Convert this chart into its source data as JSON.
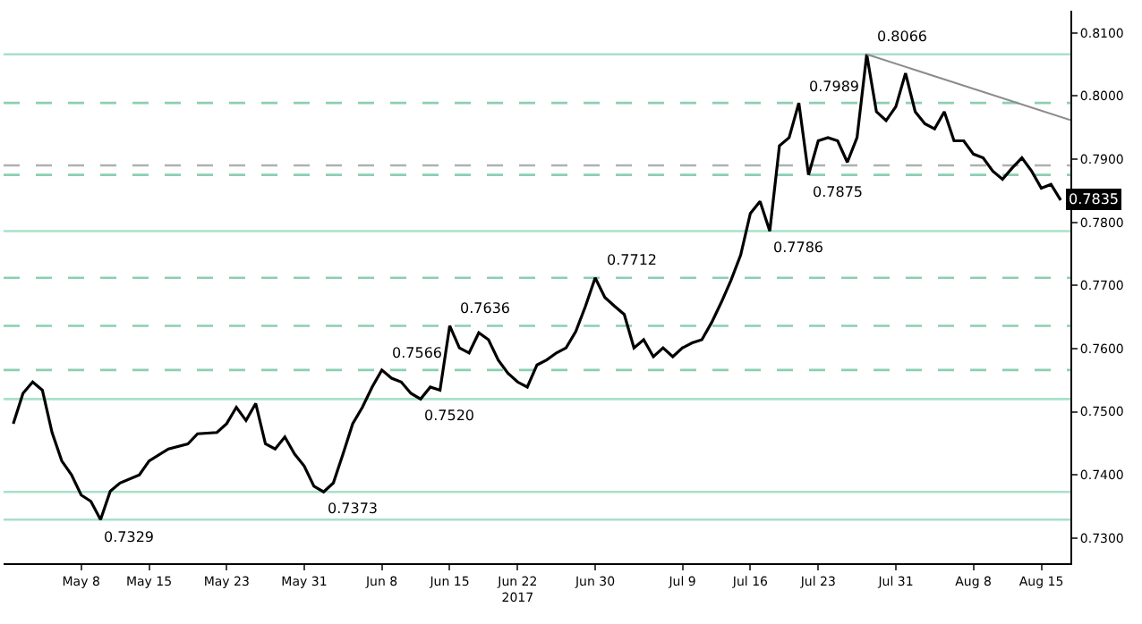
{
  "chart_data": {
    "type": "line",
    "x": [
      "2017-05-01",
      "2017-05-02",
      "2017-05-03",
      "2017-05-04",
      "2017-05-05",
      "2017-05-06",
      "2017-05-07",
      "2017-05-08",
      "2017-05-09",
      "2017-05-10",
      "2017-05-11",
      "2017-05-12",
      "2017-05-14",
      "2017-05-15",
      "2017-05-17",
      "2017-05-19",
      "2017-05-20",
      "2017-05-22",
      "2017-05-23",
      "2017-05-24",
      "2017-05-25",
      "2017-05-26",
      "2017-05-27",
      "2017-05-28",
      "2017-05-29",
      "2017-05-30",
      "2017-05-31",
      "2017-06-01",
      "2017-06-02",
      "2017-06-03",
      "2017-06-04",
      "2017-06-05",
      "2017-06-06",
      "2017-06-07",
      "2017-06-08",
      "2017-06-09",
      "2017-06-10",
      "2017-06-11",
      "2017-06-12",
      "2017-06-13",
      "2017-06-14",
      "2017-06-15",
      "2017-06-16",
      "2017-06-17",
      "2017-06-18",
      "2017-06-19",
      "2017-06-20",
      "2017-06-21",
      "2017-06-22",
      "2017-06-23",
      "2017-06-24",
      "2017-06-25",
      "2017-06-26",
      "2017-06-27",
      "2017-06-28",
      "2017-06-29",
      "2017-06-30",
      "2017-07-01",
      "2017-07-02",
      "2017-07-03",
      "2017-07-04",
      "2017-07-05",
      "2017-07-06",
      "2017-07-07",
      "2017-07-08",
      "2017-07-09",
      "2017-07-10",
      "2017-07-11",
      "2017-07-12",
      "2017-07-13",
      "2017-07-14",
      "2017-07-15",
      "2017-07-16",
      "2017-07-17",
      "2017-07-18",
      "2017-07-19",
      "2017-07-20",
      "2017-07-21",
      "2017-07-22",
      "2017-07-23",
      "2017-07-24",
      "2017-07-25",
      "2017-07-26",
      "2017-07-27",
      "2017-07-28",
      "2017-07-29",
      "2017-07-30",
      "2017-07-31",
      "2017-08-01",
      "2017-08-02",
      "2017-08-03",
      "2017-08-04",
      "2017-08-05",
      "2017-08-06",
      "2017-08-07",
      "2017-08-08",
      "2017-08-09",
      "2017-08-10",
      "2017-08-11",
      "2017-08-12",
      "2017-08-13",
      "2017-08-14",
      "2017-08-15",
      "2017-08-16",
      "2017-08-17"
    ],
    "series": [
      {
        "color": "#000000",
        "values": [
          0.7481,
          0.7529,
          0.7547,
          0.7534,
          0.7467,
          0.7422,
          0.74,
          0.7368,
          0.7358,
          0.7329,
          0.7374,
          0.7387,
          0.74,
          0.7422,
          0.7441,
          0.7449,
          0.7465,
          0.7467,
          0.7481,
          0.7507,
          0.7486,
          0.7513,
          0.7449,
          0.7441,
          0.746,
          0.7433,
          0.7414,
          0.7382,
          0.7373,
          0.7387,
          0.7433,
          0.7481,
          0.7507,
          0.7539,
          0.7566,
          0.7553,
          0.7547,
          0.7529,
          0.752,
          0.7539,
          0.7534,
          0.7636,
          0.7601,
          0.7593,
          0.7625,
          0.7614,
          0.7582,
          0.7561,
          0.7547,
          0.7539,
          0.7574,
          0.7582,
          0.7593,
          0.7601,
          0.7627,
          0.7667,
          0.7712,
          0.7681,
          0.7667,
          0.7654,
          0.7601,
          0.7614,
          0.7587,
          0.7601,
          0.7587,
          0.7601,
          0.7609,
          0.7614,
          0.7641,
          0.7673,
          0.7708,
          0.7748,
          0.7814,
          0.7833,
          0.7786,
          0.7921,
          0.7934,
          0.7989,
          0.7875,
          0.7929,
          0.7934,
          0.7929,
          0.7895,
          0.7934,
          0.8066,
          0.7975,
          0.7961,
          0.7983,
          0.8036,
          0.7975,
          0.7956,
          0.7948,
          0.7975,
          0.7929,
          0.7929,
          0.7908,
          0.7902,
          0.7881,
          0.7868,
          0.7886,
          0.7902,
          0.7881,
          0.7854,
          0.786,
          0.7835
        ]
      },
      {
        "type": "line",
        "color": "#8c8c8c",
        "x": [
          "2017-07-28",
          "2017-08-18"
        ],
        "values": [
          0.8066,
          0.7962
        ]
      }
    ],
    "xlim": [
      "2017-04-30",
      "2017-08-18"
    ],
    "xticks": [
      {
        "value": "2017-05-08",
        "label": "May 8"
      },
      {
        "value": "2017-05-15",
        "label": "May 15"
      },
      {
        "value": "2017-05-23",
        "label": "May 23"
      },
      {
        "value": "2017-05-31",
        "label": "May 31"
      },
      {
        "value": "2017-06-08",
        "label": "Jun 8"
      },
      {
        "value": "2017-06-15",
        "label": "Jun 15"
      },
      {
        "value": "2017-06-22",
        "label": "Jun 22\n2017"
      },
      {
        "value": "2017-06-30",
        "label": "Jun 30"
      },
      {
        "value": "2017-07-09",
        "label": "Jul 9"
      },
      {
        "value": "2017-07-16",
        "label": "Jul 16"
      },
      {
        "value": "2017-07-23",
        "label": "Jul 23"
      },
      {
        "value": "2017-07-31",
        "label": "Jul 31"
      },
      {
        "value": "2017-08-08",
        "label": "Aug 8"
      },
      {
        "value": "2017-08-15",
        "label": "Aug 15"
      }
    ],
    "ylim": [
      0.726,
      0.8135
    ],
    "yticks": [
      {
        "value": 0.73,
        "label": "0.7300"
      },
      {
        "value": 0.74,
        "label": "0.7400"
      },
      {
        "value": 0.75,
        "label": "0.7500"
      },
      {
        "value": 0.76,
        "label": "0.7600"
      },
      {
        "value": 0.77,
        "label": "0.7700"
      },
      {
        "value": 0.78,
        "label": "0.7800"
      },
      {
        "value": 0.79,
        "label": "0.7900"
      },
      {
        "value": 0.8,
        "label": "0.8000"
      },
      {
        "value": 0.81,
        "label": "0.8100"
      }
    ],
    "ref_lines": [
      {
        "axis": "y",
        "value": 0.7329,
        "color": "#a8e0c8",
        "line_style": "solid"
      },
      {
        "axis": "y",
        "value": 0.7373,
        "color": "#a8e0c8",
        "line_style": "solid"
      },
      {
        "axis": "y",
        "value": 0.752,
        "color": "#a8e0c8",
        "line_style": "solid"
      },
      {
        "axis": "y",
        "value": 0.7786,
        "color": "#a8e0c8",
        "line_style": "solid"
      },
      {
        "axis": "y",
        "value": 0.8066,
        "color": "#a8e0c8",
        "line_style": "solid"
      },
      {
        "axis": "y",
        "value": 0.7566,
        "color": "#8ccfb0",
        "line_style": "dashed"
      },
      {
        "axis": "y",
        "value": 0.7636,
        "color": "#8ccfb0",
        "line_style": "dashed"
      },
      {
        "axis": "y",
        "value": 0.7712,
        "color": "#8ccfb0",
        "line_style": "dashed"
      },
      {
        "axis": "y",
        "value": 0.7875,
        "color": "#8ccfb0",
        "line_style": "dashed"
      },
      {
        "axis": "y",
        "value": 0.789,
        "color": "#b0b0b0",
        "line_style": "dashed"
      },
      {
        "axis": "y",
        "value": 0.7989,
        "color": "#8ccfb0",
        "line_style": "dashed"
      }
    ],
    "annotations": [
      {
        "text": "0.7329",
        "x": "2017-05-10",
        "y": 0.7329
      },
      {
        "text": "0.7373",
        "x": "2017-06-02",
        "y": 0.7373
      },
      {
        "text": "0.7566",
        "x": "2017-06-08",
        "y": 0.7566
      },
      {
        "text": "0.7520",
        "x": "2017-06-12",
        "y": 0.752
      },
      {
        "text": "0.7636",
        "x": "2017-06-15",
        "y": 0.7636
      },
      {
        "text": "0.7712",
        "x": "2017-06-30",
        "y": 0.7712
      },
      {
        "text": "0.7786",
        "x": "2017-07-18",
        "y": 0.7786
      },
      {
        "text": "0.7989",
        "x": "2017-07-21",
        "y": 0.7989
      },
      {
        "text": "0.7875",
        "x": "2017-07-22",
        "y": 0.7875
      },
      {
        "text": "0.8066",
        "x": "2017-07-28",
        "y": 0.8066
      },
      {
        "text": "0.7835",
        "x": "2017-08-17",
        "y": 0.7835
      }
    ],
    "grid": false
  }
}
